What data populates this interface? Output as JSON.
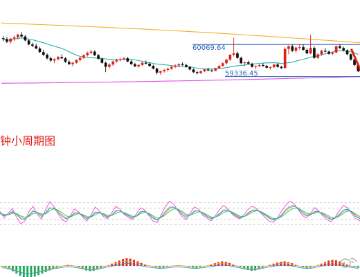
{
  "caption": "钟小周期图",
  "chart_data": [
    {
      "type": "candlestick",
      "title": "",
      "xlabel": "",
      "ylabel": "",
      "ylim": [
        58900,
        60450
      ],
      "annotations": [
        {
          "label": "60069.64",
          "value": 60069.64
        },
        {
          "label": "59336.45",
          "value": 59336.45
        }
      ],
      "levels": {
        "resistance": 59920,
        "support": 59200
      },
      "bollinger": {
        "upper_start": 60400,
        "upper_end": 59960,
        "lower_start": 59050,
        "lower_end": 59200
      },
      "moving_average_color": "#20b2aa",
      "up_color": "#e0201a",
      "down_color": "#111111",
      "candles": [
        [
          60060,
          60110,
          59990,
          60040
        ],
        [
          60040,
          60090,
          59950,
          59980
        ],
        [
          59980,
          60070,
          59940,
          60050
        ],
        [
          60050,
          60120,
          60000,
          60080
        ],
        [
          60080,
          60160,
          60030,
          60140
        ],
        [
          60140,
          60200,
          60080,
          60100
        ],
        [
          60100,
          60130,
          59990,
          60010
        ],
        [
          60010,
          60040,
          59900,
          59920
        ],
        [
          59920,
          59960,
          59860,
          59890
        ],
        [
          59890,
          59940,
          59810,
          59830
        ],
        [
          59830,
          59870,
          59730,
          59750
        ],
        [
          59750,
          59800,
          59660,
          59690
        ],
        [
          59690,
          59720,
          59580,
          59610
        ],
        [
          59610,
          59650,
          59530,
          59560
        ],
        [
          59560,
          59610,
          59500,
          59590
        ],
        [
          59590,
          59660,
          59560,
          59640
        ],
        [
          59640,
          59700,
          59590,
          59610
        ],
        [
          59610,
          59640,
          59510,
          59530
        ],
        [
          59530,
          59570,
          59460,
          59480
        ],
        [
          59480,
          59530,
          59430,
          59510
        ],
        [
          59510,
          59590,
          59490,
          59570
        ],
        [
          59570,
          59640,
          59540,
          59620
        ],
        [
          59620,
          59700,
          59590,
          59680
        ],
        [
          59680,
          59760,
          59650,
          59730
        ],
        [
          59730,
          59800,
          59700,
          59760
        ],
        [
          59760,
          59790,
          59660,
          59680
        ],
        [
          59680,
          59710,
          59580,
          59600
        ],
        [
          59600,
          59630,
          59490,
          59510
        ],
        [
          59510,
          59540,
          59300,
          59420
        ],
        [
          59420,
          59500,
          59380,
          59470
        ],
        [
          59470,
          59560,
          59440,
          59540
        ],
        [
          59540,
          59600,
          59510,
          59570
        ],
        [
          59570,
          59620,
          59540,
          59590
        ],
        [
          59590,
          59640,
          59560,
          59610
        ],
        [
          59610,
          59640,
          59520,
          59540
        ],
        [
          59540,
          59570,
          59460,
          59480
        ],
        [
          59480,
          59510,
          59410,
          59430
        ],
        [
          59430,
          59480,
          59400,
          59460
        ],
        [
          59460,
          59530,
          59440,
          59510
        ],
        [
          59510,
          59560,
          59470,
          59490
        ],
        [
          59490,
          59520,
          59420,
          59440
        ],
        [
          59440,
          59470,
          59360,
          59380
        ],
        [
          59380,
          59400,
          59250,
          59290
        ],
        [
          59290,
          59340,
          59240,
          59320
        ],
        [
          59320,
          59370,
          59290,
          59350
        ],
        [
          59350,
          59400,
          59310,
          59380
        ],
        [
          59380,
          59440,
          59350,
          59420
        ],
        [
          59420,
          59480,
          59390,
          59450
        ],
        [
          59450,
          59500,
          59410,
          59480
        ],
        [
          59480,
          59520,
          59440,
          59460
        ],
        [
          59460,
          59490,
          59400,
          59420
        ],
        [
          59420,
          59440,
          59340,
          59360
        ],
        [
          59360,
          59380,
          59280,
          59300
        ],
        [
          59300,
          59330,
          59250,
          59280
        ],
        [
          59280,
          59340,
          59260,
          59320
        ],
        [
          59320,
          59380,
          59300,
          59360
        ],
        [
          59360,
          59400,
          59320,
          59340
        ],
        [
          59340,
          59370,
          59300,
          59330
        ],
        [
          59330,
          59400,
          59320,
          59390
        ],
        [
          59390,
          59460,
          59370,
          59440
        ],
        [
          59440,
          59520,
          59420,
          59500
        ],
        [
          59500,
          59600,
          59470,
          59580
        ],
        [
          59580,
          59700,
          59550,
          59690
        ],
        [
          59690,
          60070,
          59650,
          59720
        ],
        [
          59720,
          59760,
          59600,
          59620
        ],
        [
          59620,
          59650,
          59480,
          59500
        ],
        [
          59500,
          59540,
          59430,
          59520
        ],
        [
          59520,
          59560,
          59470,
          59490
        ],
        [
          59490,
          59510,
          59400,
          59420
        ],
        [
          59420,
          59450,
          59370,
          59440
        ],
        [
          59440,
          59480,
          59410,
          59460
        ],
        [
          59460,
          59500,
          59420,
          59440
        ],
        [
          59440,
          59460,
          59380,
          59400
        ],
        [
          59400,
          59430,
          59360,
          59410
        ],
        [
          59410,
          59480,
          59390,
          59470
        ],
        [
          59470,
          59500,
          59400,
          59420
        ],
        [
          59420,
          59440,
          59370,
          59390
        ],
        [
          59390,
          59860,
          59380,
          59820
        ],
        [
          59820,
          59900,
          59700,
          59880
        ],
        [
          59880,
          59920,
          59750,
          59780
        ],
        [
          59780,
          59870,
          59730,
          59850
        ],
        [
          59850,
          59930,
          59800,
          59860
        ],
        [
          59860,
          59920,
          59780,
          59800
        ],
        [
          59800,
          59830,
          59700,
          59720
        ],
        [
          59720,
          60130,
          59700,
          59840
        ],
        [
          59840,
          59880,
          59600,
          59620
        ],
        [
          59620,
          59720,
          59590,
          59700
        ],
        [
          59700,
          59800,
          59670,
          59780
        ],
        [
          59780,
          59840,
          59740,
          59760
        ],
        [
          59760,
          59790,
          59690,
          59710
        ],
        [
          59710,
          59760,
          59680,
          59740
        ],
        [
          59740,
          59900,
          59720,
          59880
        ],
        [
          59880,
          59930,
          59820,
          59840
        ],
        [
          59840,
          59870,
          59760,
          59790
        ],
        [
          59790,
          59810,
          59680,
          59700
        ],
        [
          59700,
          59720,
          59560,
          59580
        ],
        [
          59580,
          59600,
          59440,
          59460
        ],
        [
          59460,
          59480,
          59300,
          59320
        ]
      ]
    },
    {
      "type": "line",
      "title": "",
      "series": [
        {
          "color": "#ff4fd8",
          "values": [
            56,
            38,
            52,
            64,
            40,
            22,
            30,
            55,
            70,
            48,
            35,
            60,
            82,
            70,
            50,
            33,
            28,
            45,
            62,
            55,
            40,
            30,
            46,
            68,
            58,
            42,
            36,
            52,
            70,
            62,
            48,
            40,
            34,
            50,
            66,
            60,
            44,
            30,
            26,
            48,
            70,
            84,
            76,
            58,
            42,
            34,
            52,
            68,
            62,
            46,
            38,
            30,
            44,
            60,
            72,
            64,
            50,
            40,
            36,
            48,
            62,
            70,
            64,
            52,
            40,
            30,
            26,
            38,
            56,
            72,
            84,
            78,
            62,
            46,
            38,
            50,
            66,
            58,
            44,
            34,
            28,
            40,
            58,
            72,
            66,
            50,
            36,
            30
          ]
        },
        {
          "color": "#ff9a1a",
          "values": [
            50,
            46,
            48,
            54,
            50,
            40,
            36,
            44,
            56,
            54,
            46,
            50,
            64,
            66,
            58,
            46,
            38,
            40,
            50,
            52,
            46,
            38,
            40,
            52,
            54,
            48,
            42,
            46,
            56,
            58,
            52,
            46,
            40,
            44,
            54,
            56,
            50,
            40,
            34,
            40,
            52,
            64,
            68,
            62,
            52,
            44,
            46,
            56,
            58,
            52,
            44,
            38,
            40,
            48,
            58,
            60,
            54,
            46,
            40,
            42,
            50,
            58,
            60,
            56,
            48,
            40,
            34,
            36,
            44,
            56,
            66,
            70,
            66,
            56,
            48,
            48,
            54,
            56,
            50,
            42,
            36,
            38,
            46,
            56,
            60,
            56,
            46,
            38
          ]
        },
        {
          "color": "#1ea8e8",
          "values": [
            52,
            44,
            48,
            56,
            48,
            36,
            34,
            46,
            58,
            52,
            42,
            52,
            66,
            64,
            54,
            42,
            36,
            42,
            52,
            52,
            44,
            36,
            42,
            54,
            54,
            46,
            40,
            46,
            58,
            58,
            50,
            44,
            38,
            44,
            56,
            56,
            48,
            38,
            32,
            42,
            56,
            68,
            68,
            60,
            48,
            40,
            46,
            58,
            58,
            50,
            42,
            36,
            40,
            50,
            60,
            60,
            52,
            44,
            38,
            42,
            52,
            60,
            60,
            54,
            46,
            38,
            32,
            36,
            46,
            60,
            70,
            72,
            64,
            52,
            44,
            46,
            56,
            56,
            48,
            40,
            34,
            38,
            48,
            60,
            62,
            54,
            42,
            36
          ]
        },
        {
          "color": "#2bc46f",
          "values": [
            51,
            48,
            47,
            51,
            50,
            44,
            40,
            42,
            50,
            53,
            49,
            49,
            58,
            63,
            60,
            52,
            44,
            41,
            46,
            50,
            48,
            42,
            41,
            47,
            52,
            50,
            45,
            45,
            51,
            55,
            53,
            48,
            43,
            43,
            50,
            54,
            51,
            44,
            38,
            39,
            47,
            57,
            63,
            62,
            56,
            48,
            46,
            51,
            55,
            53,
            47,
            41,
            40,
            45,
            53,
            57,
            55,
            49,
            43,
            42,
            47,
            54,
            58,
            56,
            50,
            43,
            37,
            36,
            41,
            50,
            59,
            65,
            65,
            59,
            52,
            49,
            51,
            54,
            52,
            46,
            40,
            38,
            43,
            51,
            57,
            56,
            49,
            42
          ]
        }
      ]
    },
    {
      "type": "bar",
      "title": "",
      "up_color": "#e0201a",
      "down_color": "#1faa5a",
      "values": [
        -2,
        -4,
        -8,
        -14,
        -20,
        -26,
        -30,
        -32,
        -31,
        -28,
        -24,
        -20,
        -16,
        -12,
        -8,
        -5,
        -2,
        1,
        3,
        2,
        -1,
        -4,
        -8,
        -12,
        -14,
        -13,
        -10,
        -6,
        -2,
        2,
        6,
        10,
        14,
        18,
        20,
        19,
        16,
        12,
        8,
        4,
        1,
        -2,
        -4,
        -6,
        -5,
        -3,
        -1,
        1,
        2,
        1,
        -1,
        -3,
        -5,
        -6,
        -4,
        -2,
        1,
        4,
        7,
        10,
        12,
        11,
        8,
        4,
        0,
        -4,
        -8,
        -11,
        -13,
        -12,
        -9,
        -5,
        -1,
        3,
        6,
        9,
        11,
        12,
        10,
        7,
        3,
        -1,
        -4,
        -6,
        -5,
        -2,
        2,
        6,
        10,
        14,
        16,
        15,
        12,
        8,
        4,
        0,
        -3,
        -5
      ]
    }
  ]
}
